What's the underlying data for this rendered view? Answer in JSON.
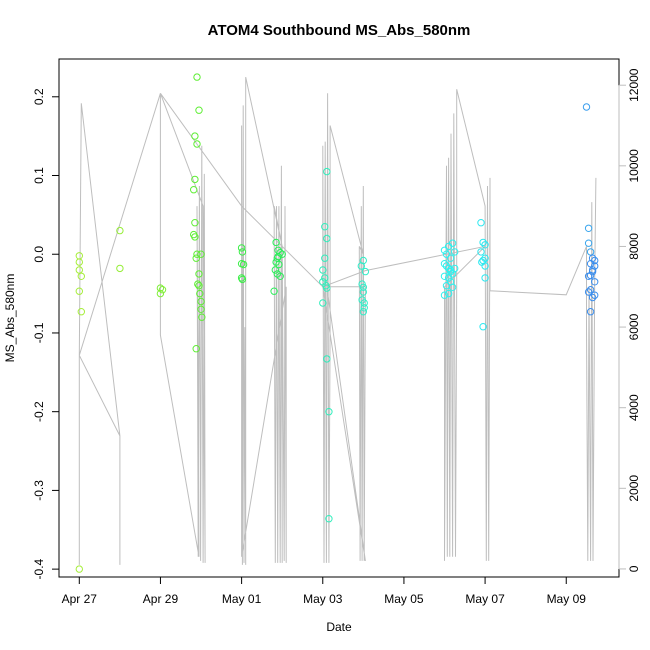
{
  "chart_data": {
    "type": "scatter",
    "title": "ATOM4 Southbound MS_Abs_580nm",
    "xlabel": "Date",
    "ylabel": "MS_Abs_580nm",
    "x_ticks": [
      "Apr 27",
      "Apr 29",
      "May 01",
      "May 03",
      "May 05",
      "May 07",
      "May 09"
    ],
    "x_tick_days": [
      0,
      2,
      4,
      6,
      8,
      10,
      12
    ],
    "xlim": [
      -0.5,
      13.3
    ],
    "ylim": [
      -0.41,
      0.248
    ],
    "y_ticks": [
      -0.4,
      -0.3,
      -0.2,
      -0.1,
      0.0,
      0.1,
      0.2
    ],
    "y_tick_labels": [
      "-0.4",
      "-0.3",
      "-0.2",
      "-0.1",
      "0.0",
      "0.1",
      "0.2"
    ],
    "y2lim": [
      -200,
      12650
    ],
    "y2_ticks": [
      0,
      2000,
      4000,
      6000,
      8000,
      10000,
      12000
    ],
    "grid": false,
    "secondary_series": {
      "color": "#bebebe",
      "path": [
        [
          0.0,
          100
        ],
        [
          0.0,
          5300
        ],
        [
          0.05,
          11550
        ],
        [
          1.0,
          3300
        ],
        [
          1.0,
          100
        ],
        [
          1.0,
          3300
        ],
        [
          0.0,
          5300
        ],
        [
          2.0,
          11800
        ],
        [
          2.0,
          5800
        ],
        [
          2.95,
          300
        ],
        [
          2.9,
          9000
        ],
        [
          2.93,
          300
        ],
        [
          2.96,
          9500
        ],
        [
          2.99,
          200
        ],
        [
          3.02,
          10500
        ],
        [
          3.05,
          150
        ],
        [
          3.08,
          9800
        ],
        [
          3.1,
          150
        ],
        [
          3.05,
          9000
        ],
        [
          2.0,
          11800
        ],
        [
          4.0,
          9000
        ],
        [
          4.0,
          11000
        ],
        [
          4.02,
          100
        ],
        [
          4.04,
          11500
        ],
        [
          4.06,
          150
        ],
        [
          4.08,
          6000
        ],
        [
          4.1,
          100
        ],
        [
          4.1,
          12200
        ],
        [
          5.0,
          8000
        ],
        [
          4.8,
          9000
        ],
        [
          4.83,
          150
        ],
        [
          4.86,
          9000
        ],
        [
          4.89,
          150
        ],
        [
          4.92,
          9000
        ],
        [
          4.95,
          150
        ],
        [
          4.98,
          10000
        ],
        [
          5.0,
          150
        ],
        [
          5.0,
          8000
        ],
        [
          5.05,
          200
        ],
        [
          5.07,
          9000
        ],
        [
          5.1,
          150
        ],
        [
          5.1,
          7000
        ],
        [
          4.0,
          300
        ],
        [
          4.0,
          9000
        ],
        [
          6.0,
          7000
        ],
        [
          6.0,
          10500
        ],
        [
          6.03,
          150
        ],
        [
          6.06,
          10600
        ],
        [
          6.09,
          150
        ],
        [
          6.12,
          11800
        ],
        [
          6.15,
          150
        ],
        [
          6.18,
          6000
        ],
        [
          6.18,
          11000
        ],
        [
          7.0,
          7800
        ],
        [
          6.9,
          8000
        ],
        [
          6.92,
          200
        ],
        [
          6.95,
          9000
        ],
        [
          6.97,
          200
        ],
        [
          7.0,
          9500
        ],
        [
          7.02,
          200
        ],
        [
          7.05,
          7000
        ],
        [
          6.1,
          7000
        ],
        [
          7.05,
          200
        ],
        [
          6.0,
          7000
        ],
        [
          7.05,
          7400
        ],
        [
          10.0,
          8000
        ],
        [
          9.0,
          7000
        ],
        [
          9.0,
          200
        ],
        [
          9.05,
          10000
        ],
        [
          9.07,
          300
        ],
        [
          9.1,
          10200
        ],
        [
          9.13,
          300
        ],
        [
          9.16,
          10800
        ],
        [
          9.2,
          300
        ],
        [
          9.23,
          11300
        ],
        [
          9.27,
          300
        ],
        [
          9.3,
          7000
        ],
        [
          9.3,
          11900
        ],
        [
          10.0,
          9000
        ],
        [
          10.0,
          9000
        ],
        [
          10.03,
          200
        ],
        [
          10.06,
          9500
        ],
        [
          10.09,
          200
        ],
        [
          10.12,
          9700
        ],
        [
          10.12,
          6900
        ],
        [
          12.0,
          6800
        ],
        [
          12.0,
          6800
        ],
        [
          12.5,
          8000
        ],
        [
          12.5,
          6000
        ],
        [
          12.53,
          200
        ],
        [
          12.56,
          7000
        ],
        [
          12.6,
          200
        ],
        [
          12.63,
          9100
        ],
        [
          12.66,
          200
        ],
        [
          12.7,
          7200
        ],
        [
          12.73,
          9700
        ]
      ]
    },
    "points": [
      {
        "x": 0.0,
        "y": -0.01,
        "color": "#a6ee3a"
      },
      {
        "x": 0.0,
        "y": -0.002,
        "color": "#a6ee3a"
      },
      {
        "x": 0.0,
        "y": -0.02,
        "color": "#a6ee3a"
      },
      {
        "x": 0.05,
        "y": -0.028,
        "color": "#a6ee3a"
      },
      {
        "x": 0.0,
        "y": -0.047,
        "color": "#a6ee3a"
      },
      {
        "x": 0.05,
        "y": -0.073,
        "color": "#a6ee3a"
      },
      {
        "x": 0.0,
        "y": -0.4,
        "color": "#a6ee3a"
      },
      {
        "x": 1.0,
        "y": 0.03,
        "color": "#96ee38"
      },
      {
        "x": 1.0,
        "y": -0.018,
        "color": "#96ee38"
      },
      {
        "x": 2.0,
        "y": -0.043,
        "color": "#80ee38"
      },
      {
        "x": 2.05,
        "y": -0.045,
        "color": "#80ee38"
      },
      {
        "x": 2.0,
        "y": -0.05,
        "color": "#80ee38"
      },
      {
        "x": 2.9,
        "y": 0.225,
        "color": "#5eee34"
      },
      {
        "x": 2.95,
        "y": 0.183,
        "color": "#5eee34"
      },
      {
        "x": 2.85,
        "y": 0.15,
        "color": "#5eee34"
      },
      {
        "x": 2.9,
        "y": 0.14,
        "color": "#5eee34"
      },
      {
        "x": 2.85,
        "y": 0.095,
        "color": "#5eee34"
      },
      {
        "x": 2.82,
        "y": 0.082,
        "color": "#5eee34"
      },
      {
        "x": 2.85,
        "y": 0.04,
        "color": "#5eee34"
      },
      {
        "x": 2.82,
        "y": 0.025,
        "color": "#5eee34"
      },
      {
        "x": 2.85,
        "y": 0.022,
        "color": "#5eee34"
      },
      {
        "x": 2.88,
        "y": -0.005,
        "color": "#5eee34"
      },
      {
        "x": 2.9,
        "y": 0.0,
        "color": "#5eee34"
      },
      {
        "x": 2.95,
        "y": -0.025,
        "color": "#5eee34"
      },
      {
        "x": 2.92,
        "y": -0.038,
        "color": "#5eee34"
      },
      {
        "x": 2.95,
        "y": -0.04,
        "color": "#5eee34"
      },
      {
        "x": 2.97,
        "y": -0.05,
        "color": "#5eee34"
      },
      {
        "x": 3.0,
        "y": -0.06,
        "color": "#5eee34"
      },
      {
        "x": 3.0,
        "y": -0.07,
        "color": "#5eee34"
      },
      {
        "x": 3.02,
        "y": -0.08,
        "color": "#5eee34"
      },
      {
        "x": 3.0,
        "y": 0.0,
        "color": "#5eee34"
      },
      {
        "x": 2.88,
        "y": -0.12,
        "color": "#5eee34"
      },
      {
        "x": 4.0,
        "y": 0.008,
        "color": "#3cee48"
      },
      {
        "x": 4.02,
        "y": 0.003,
        "color": "#3cee48"
      },
      {
        "x": 4.0,
        "y": -0.012,
        "color": "#3cee48"
      },
      {
        "x": 4.05,
        "y": -0.013,
        "color": "#3cee48"
      },
      {
        "x": 4.0,
        "y": -0.03,
        "color": "#3cee48"
      },
      {
        "x": 4.02,
        "y": -0.032,
        "color": "#3cee48"
      },
      {
        "x": 4.85,
        "y": 0.015,
        "color": "#2cee5a"
      },
      {
        "x": 4.9,
        "y": 0.005,
        "color": "#2cee5a"
      },
      {
        "x": 4.95,
        "y": 0.002,
        "color": "#2cee5a"
      },
      {
        "x": 4.88,
        "y": -0.005,
        "color": "#2cee5a"
      },
      {
        "x": 4.85,
        "y": -0.01,
        "color": "#2cee5a"
      },
      {
        "x": 4.92,
        "y": -0.013,
        "color": "#2cee5a"
      },
      {
        "x": 4.83,
        "y": -0.02,
        "color": "#2cee5a"
      },
      {
        "x": 4.88,
        "y": -0.025,
        "color": "#2cee5a"
      },
      {
        "x": 4.95,
        "y": -0.028,
        "color": "#2cee5a"
      },
      {
        "x": 5.0,
        "y": 0.0,
        "color": "#2cee5a"
      },
      {
        "x": 4.8,
        "y": -0.047,
        "color": "#2cee5a"
      },
      {
        "x": 4.9,
        "y": -0.003,
        "color": "#2cee5a"
      },
      {
        "x": 6.1,
        "y": 0.105,
        "color": "#30eebc"
      },
      {
        "x": 6.05,
        "y": 0.035,
        "color": "#30eebc"
      },
      {
        "x": 6.1,
        "y": 0.02,
        "color": "#30eebc"
      },
      {
        "x": 6.05,
        "y": -0.005,
        "color": "#30eebc"
      },
      {
        "x": 6.0,
        "y": -0.02,
        "color": "#30eebc"
      },
      {
        "x": 6.05,
        "y": -0.03,
        "color": "#30eebc"
      },
      {
        "x": 6.0,
        "y": -0.035,
        "color": "#30eebc"
      },
      {
        "x": 6.08,
        "y": -0.04,
        "color": "#30eebc"
      },
      {
        "x": 6.1,
        "y": -0.043,
        "color": "#30eebc"
      },
      {
        "x": 6.0,
        "y": -0.062,
        "color": "#30eebc"
      },
      {
        "x": 6.1,
        "y": -0.133,
        "color": "#30eebc"
      },
      {
        "x": 6.15,
        "y": -0.2,
        "color": "#30eebc"
      },
      {
        "x": 6.15,
        "y": -0.336,
        "color": "#30eebc"
      },
      {
        "x": 7.0,
        "y": -0.008,
        "color": "#30eec8"
      },
      {
        "x": 6.95,
        "y": -0.015,
        "color": "#30eec8"
      },
      {
        "x": 7.05,
        "y": -0.022,
        "color": "#30eec8"
      },
      {
        "x": 6.97,
        "y": -0.038,
        "color": "#30eec8"
      },
      {
        "x": 7.0,
        "y": -0.042,
        "color": "#30eec8"
      },
      {
        "x": 7.0,
        "y": -0.048,
        "color": "#30eec8"
      },
      {
        "x": 6.97,
        "y": -0.058,
        "color": "#30eec8"
      },
      {
        "x": 7.02,
        "y": -0.062,
        "color": "#30eec8"
      },
      {
        "x": 7.02,
        "y": -0.068,
        "color": "#30eec8"
      },
      {
        "x": 7.0,
        "y": -0.073,
        "color": "#30eec8"
      },
      {
        "x": 9.0,
        "y": 0.005,
        "color": "#2ef0ee"
      },
      {
        "x": 9.05,
        "y": 0.0,
        "color": "#2ef0ee"
      },
      {
        "x": 9.1,
        "y": 0.01,
        "color": "#2ef0ee"
      },
      {
        "x": 9.15,
        "y": -0.005,
        "color": "#2ef0ee"
      },
      {
        "x": 9.2,
        "y": 0.014,
        "color": "#2ef0ee"
      },
      {
        "x": 9.25,
        "y": 0.003,
        "color": "#2ef0ee"
      },
      {
        "x": 9.0,
        "y": -0.012,
        "color": "#2ef0ee"
      },
      {
        "x": 9.05,
        "y": -0.015,
        "color": "#2ef0ee"
      },
      {
        "x": 9.1,
        "y": -0.018,
        "color": "#2ef0ee"
      },
      {
        "x": 9.15,
        "y": -0.022,
        "color": "#2ef0ee"
      },
      {
        "x": 9.2,
        "y": -0.025,
        "color": "#2ef0ee"
      },
      {
        "x": 9.0,
        "y": -0.028,
        "color": "#2ef0ee"
      },
      {
        "x": 9.1,
        "y": -0.03,
        "color": "#2ef0ee"
      },
      {
        "x": 9.15,
        "y": -0.035,
        "color": "#2ef0ee"
      },
      {
        "x": 9.05,
        "y": -0.04,
        "color": "#2ef0ee"
      },
      {
        "x": 9.2,
        "y": -0.042,
        "color": "#2ef0ee"
      },
      {
        "x": 9.0,
        "y": -0.052,
        "color": "#2ef0ee"
      },
      {
        "x": 9.1,
        "y": -0.05,
        "color": "#2ef0ee"
      },
      {
        "x": 9.15,
        "y": -0.02,
        "color": "#2ef0ee"
      },
      {
        "x": 9.25,
        "y": -0.018,
        "color": "#2ef0ee"
      },
      {
        "x": 9.9,
        "y": 0.04,
        "color": "#2ce8f0"
      },
      {
        "x": 9.95,
        "y": 0.015,
        "color": "#2ce8f0"
      },
      {
        "x": 10.0,
        "y": 0.012,
        "color": "#2ce8f0"
      },
      {
        "x": 9.9,
        "y": 0.003,
        "color": "#2ce8f0"
      },
      {
        "x": 10.0,
        "y": -0.005,
        "color": "#2ce8f0"
      },
      {
        "x": 9.95,
        "y": -0.008,
        "color": "#2ce8f0"
      },
      {
        "x": 9.92,
        "y": -0.01,
        "color": "#2ce8f0"
      },
      {
        "x": 10.0,
        "y": -0.015,
        "color": "#2ce8f0"
      },
      {
        "x": 10.0,
        "y": -0.03,
        "color": "#2ce8f0"
      },
      {
        "x": 9.95,
        "y": -0.092,
        "color": "#2ce8f0"
      },
      {
        "x": 12.5,
        "y": 0.187,
        "color": "#3a9eee"
      },
      {
        "x": 12.55,
        "y": 0.033,
        "color": "#3aa6ee"
      },
      {
        "x": 12.55,
        "y": 0.014,
        "color": "#3aa6ee"
      },
      {
        "x": 12.6,
        "y": 0.003,
        "color": "#3aa6ee"
      },
      {
        "x": 12.65,
        "y": -0.005,
        "color": "#3a8eee"
      },
      {
        "x": 12.7,
        "y": -0.008,
        "color": "#3a8eee"
      },
      {
        "x": 12.6,
        "y": -0.012,
        "color": "#3a8eee"
      },
      {
        "x": 12.7,
        "y": -0.015,
        "color": "#3a8eee"
      },
      {
        "x": 12.65,
        "y": -0.022,
        "color": "#3a8eee"
      },
      {
        "x": 12.6,
        "y": -0.027,
        "color": "#3a8eee"
      },
      {
        "x": 12.55,
        "y": -0.028,
        "color": "#3a8eee"
      },
      {
        "x": 12.7,
        "y": -0.035,
        "color": "#3a8eee"
      },
      {
        "x": 12.6,
        "y": -0.045,
        "color": "#3a8eee"
      },
      {
        "x": 12.55,
        "y": -0.048,
        "color": "#3a8eee"
      },
      {
        "x": 12.7,
        "y": -0.052,
        "color": "#3a8eee"
      },
      {
        "x": 12.65,
        "y": -0.055,
        "color": "#3a8eee"
      },
      {
        "x": 12.6,
        "y": -0.073,
        "color": "#3a8eee"
      },
      {
        "x": 12.65,
        "y": -0.02,
        "color": "#3a8eee"
      }
    ]
  }
}
